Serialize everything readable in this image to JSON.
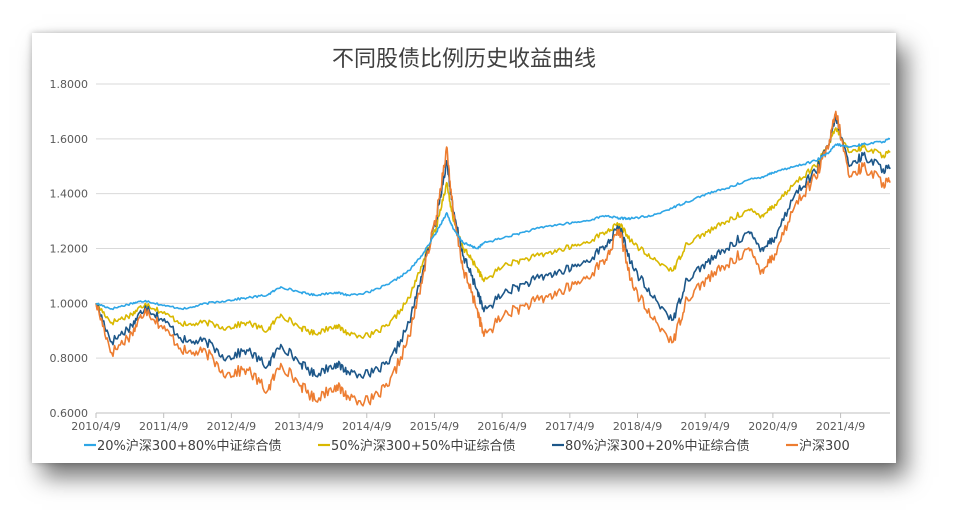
{
  "chart_data": {
    "type": "line",
    "title": "不同股债比例历史收益曲线",
    "xlabel": "",
    "ylabel": "",
    "x_ticks": [
      "2010/4/9",
      "2011/4/9",
      "2012/4/9",
      "2013/4/9",
      "2014/4/9",
      "2015/4/9",
      "2016/4/9",
      "2017/4/9",
      "2018/4/9",
      "2019/4/9",
      "2020/4/9",
      "2021/4/9"
    ],
    "y_ticks": [
      "0.6000",
      "0.8000",
      "1.0000",
      "1.2000",
      "1.4000",
      "1.6000",
      "1.8000"
    ],
    "ylim": [
      0.6,
      1.8
    ],
    "xlim": [
      2010.27,
      2022.0
    ],
    "grid": "horizontal",
    "legend_position": "bottom",
    "series": [
      {
        "name": "20%沪深300+80%中证综合债",
        "color": "#2ea6e6",
        "x": [
          2010.27,
          2010.5,
          2010.8,
          2011.0,
          2011.3,
          2011.6,
          2011.9,
          2012.2,
          2012.5,
          2012.8,
          2013.0,
          2013.3,
          2013.5,
          2013.8,
          2014.0,
          2014.3,
          2014.6,
          2014.9,
          2015.1,
          2015.3,
          2015.45,
          2015.55,
          2015.7,
          2015.9,
          2016.0,
          2016.3,
          2016.6,
          2016.9,
          2017.2,
          2017.5,
          2017.8,
          2018.0,
          2018.2,
          2018.5,
          2018.8,
          2019.0,
          2019.3,
          2019.6,
          2019.9,
          2020.1,
          2020.3,
          2020.6,
          2020.9,
          2021.1,
          2021.2,
          2021.4,
          2021.6,
          2021.9,
          2022.0
        ],
        "values": [
          1.0,
          0.98,
          1.0,
          1.01,
          0.99,
          0.98,
          1.0,
          1.01,
          1.02,
          1.03,
          1.06,
          1.04,
          1.03,
          1.04,
          1.03,
          1.04,
          1.07,
          1.12,
          1.18,
          1.26,
          1.33,
          1.27,
          1.22,
          1.2,
          1.22,
          1.24,
          1.26,
          1.28,
          1.29,
          1.3,
          1.32,
          1.31,
          1.31,
          1.32,
          1.35,
          1.37,
          1.4,
          1.42,
          1.45,
          1.46,
          1.48,
          1.5,
          1.52,
          1.55,
          1.58,
          1.57,
          1.58,
          1.59,
          1.6
        ]
      },
      {
        "name": "50%沪深300+50%中证综合债",
        "color": "#d9b800",
        "x": [
          2010.27,
          2010.5,
          2010.8,
          2011.0,
          2011.3,
          2011.6,
          2011.9,
          2012.2,
          2012.5,
          2012.8,
          2013.0,
          2013.3,
          2013.5,
          2013.8,
          2014.0,
          2014.3,
          2014.6,
          2014.9,
          2015.1,
          2015.3,
          2015.45,
          2015.55,
          2015.7,
          2015.9,
          2016.0,
          2016.3,
          2016.6,
          2016.9,
          2017.2,
          2017.5,
          2017.8,
          2018.0,
          2018.2,
          2018.5,
          2018.8,
          2019.0,
          2019.3,
          2019.6,
          2019.9,
          2020.1,
          2020.3,
          2020.6,
          2020.9,
          2021.1,
          2021.2,
          2021.4,
          2021.6,
          2021.9,
          2022.0
        ],
        "values": [
          1.0,
          0.93,
          0.96,
          1.0,
          0.96,
          0.92,
          0.93,
          0.91,
          0.93,
          0.9,
          0.96,
          0.91,
          0.89,
          0.92,
          0.89,
          0.88,
          0.92,
          1.02,
          1.15,
          1.28,
          1.44,
          1.3,
          1.2,
          1.13,
          1.08,
          1.14,
          1.16,
          1.18,
          1.2,
          1.22,
          1.26,
          1.29,
          1.22,
          1.16,
          1.12,
          1.22,
          1.26,
          1.3,
          1.34,
          1.32,
          1.36,
          1.44,
          1.5,
          1.58,
          1.64,
          1.55,
          1.57,
          1.54,
          1.55
        ]
      },
      {
        "name": "80%沪深300+20%中证综合债",
        "color": "#1d5789",
        "x": [
          2010.27,
          2010.5,
          2010.8,
          2011.0,
          2011.3,
          2011.6,
          2011.9,
          2012.2,
          2012.5,
          2012.8,
          2013.0,
          2013.3,
          2013.5,
          2013.8,
          2014.0,
          2014.3,
          2014.6,
          2014.9,
          2015.1,
          2015.3,
          2015.45,
          2015.55,
          2015.7,
          2015.9,
          2016.0,
          2016.3,
          2016.6,
          2016.9,
          2017.2,
          2017.5,
          2017.8,
          2018.0,
          2018.2,
          2018.5,
          2018.8,
          2019.0,
          2019.3,
          2019.6,
          2019.9,
          2020.1,
          2020.3,
          2020.6,
          2020.9,
          2021.1,
          2021.2,
          2021.4,
          2021.6,
          2021.9,
          2022.0
        ],
        "values": [
          1.0,
          0.86,
          0.92,
          0.99,
          0.93,
          0.86,
          0.86,
          0.8,
          0.83,
          0.77,
          0.85,
          0.78,
          0.74,
          0.78,
          0.75,
          0.74,
          0.78,
          0.93,
          1.12,
          1.31,
          1.52,
          1.33,
          1.17,
          1.05,
          0.97,
          1.04,
          1.07,
          1.1,
          1.12,
          1.15,
          1.21,
          1.28,
          1.13,
          1.02,
          0.94,
          1.09,
          1.15,
          1.2,
          1.26,
          1.2,
          1.24,
          1.4,
          1.48,
          1.58,
          1.68,
          1.5,
          1.54,
          1.49,
          1.49
        ]
      },
      {
        "name": "沪深300",
        "color": "#ed7d31",
        "x": [
          2010.27,
          2010.5,
          2010.8,
          2011.0,
          2011.3,
          2011.6,
          2011.9,
          2012.2,
          2012.5,
          2012.8,
          2013.0,
          2013.3,
          2013.5,
          2013.8,
          2014.0,
          2014.3,
          2014.6,
          2014.9,
          2015.1,
          2015.3,
          2015.45,
          2015.55,
          2015.7,
          2015.9,
          2016.0,
          2016.3,
          2016.6,
          2016.9,
          2017.2,
          2017.5,
          2017.8,
          2018.0,
          2018.2,
          2018.5,
          2018.8,
          2019.0,
          2019.3,
          2019.6,
          2019.9,
          2020.1,
          2020.3,
          2020.6,
          2020.9,
          2021.1,
          2021.2,
          2021.4,
          2021.6,
          2021.9,
          2022.0
        ],
        "values": [
          1.0,
          0.82,
          0.89,
          0.98,
          0.9,
          0.82,
          0.82,
          0.74,
          0.76,
          0.68,
          0.78,
          0.7,
          0.65,
          0.7,
          0.66,
          0.64,
          0.7,
          0.88,
          1.1,
          1.32,
          1.57,
          1.32,
          1.12,
          0.98,
          0.88,
          0.96,
          0.99,
          1.02,
          1.05,
          1.09,
          1.16,
          1.27,
          1.06,
          0.94,
          0.86,
          1.02,
          1.09,
          1.14,
          1.2,
          1.12,
          1.18,
          1.36,
          1.46,
          1.58,
          1.7,
          1.46,
          1.5,
          1.44,
          1.44
        ]
      }
    ]
  }
}
